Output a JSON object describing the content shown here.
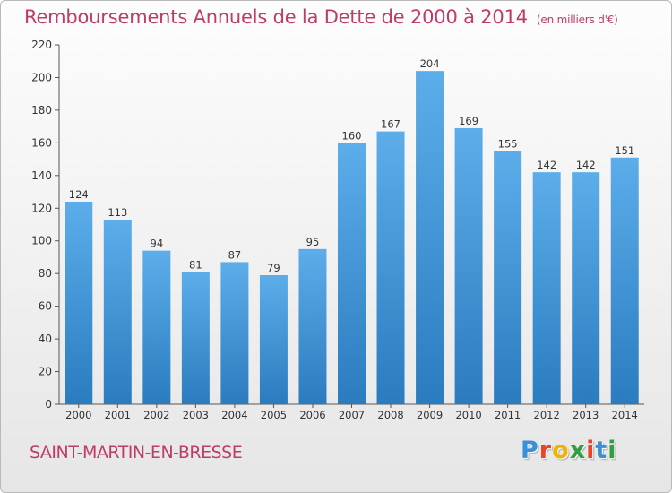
{
  "header": {
    "title": "Remboursements Annuels de la Dette de 2000 à 2014",
    "subtitle": "(en milliers d'€)"
  },
  "footer": {
    "commune": "SAINT-MARTIN-EN-BRESSE",
    "logo": {
      "text": "Proxiti",
      "letter_colors": [
        "#3a8fd6",
        "#e8462a",
        "#f0b400",
        "#2f9e3e",
        "#e8462a",
        "#3a8fd6",
        "#2f9e3e"
      ]
    }
  },
  "chart_data": {
    "type": "bar",
    "categories": [
      "2000",
      "2001",
      "2002",
      "2003",
      "2004",
      "2005",
      "2006",
      "2007",
      "2008",
      "2009",
      "2010",
      "2011",
      "2012",
      "2013",
      "2014"
    ],
    "values": [
      124,
      113,
      94,
      81,
      87,
      79,
      95,
      160,
      167,
      204,
      169,
      155,
      142,
      142,
      151
    ],
    "data_labels": [
      "124",
      "113",
      "94",
      "81",
      "87",
      "79",
      "95",
      "160",
      "167",
      "204",
      "169",
      "155",
      "142",
      "142",
      "151"
    ],
    "yticks": [
      0,
      20,
      40,
      60,
      80,
      100,
      120,
      140,
      160,
      180,
      200,
      220
    ],
    "ylim": [
      0,
      220
    ],
    "grid": false,
    "colors": {
      "bar_light": "#5cadea",
      "bar_dark": "#2a7cbf",
      "axis": "#555555",
      "text": "#333333"
    }
  }
}
